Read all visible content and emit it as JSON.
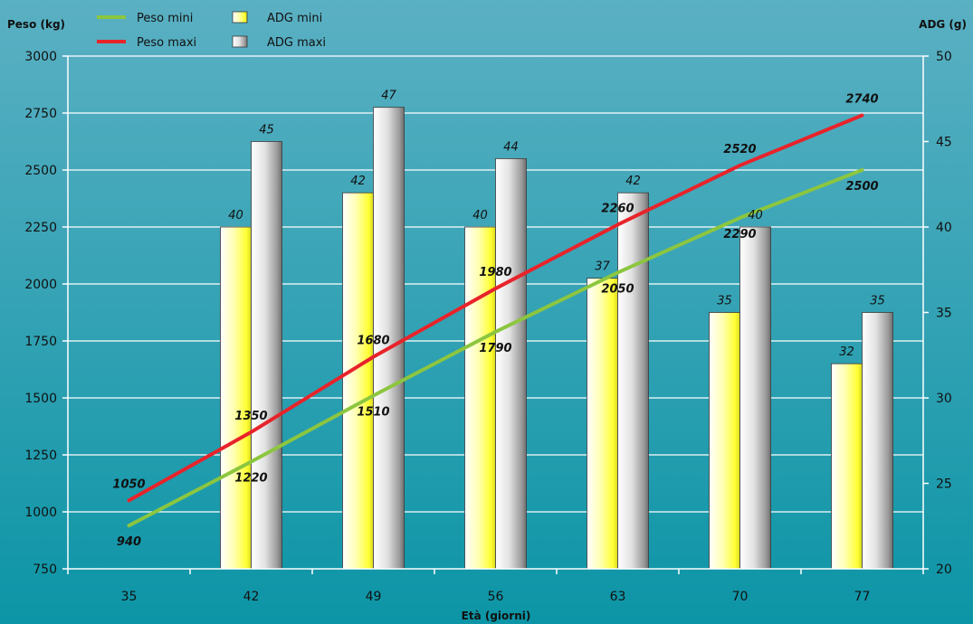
{
  "chart_data": {
    "type": "bar",
    "categories": [
      "35",
      "42",
      "49",
      "56",
      "63",
      "70",
      "77"
    ],
    "xlabel": "Età (giorni)",
    "ylabel_left": "Peso (kg)",
    "ylabel_right": "ADG (g)",
    "ylim_left": [
      750,
      3000
    ],
    "yticks_left": [
      750,
      1000,
      1250,
      1500,
      1750,
      2000,
      2250,
      2500,
      2750,
      3000
    ],
    "ylim_right": [
      20,
      50
    ],
    "yticks_right": [
      20,
      25,
      30,
      35,
      40,
      45,
      50
    ],
    "grid": true,
    "legend_position": "top-left",
    "background": [
      "#5bb0c3",
      "#0c95a6"
    ],
    "bar_series": [
      {
        "name": "ADG mini",
        "axis": "right",
        "values": [
          null,
          40,
          42,
          40,
          37,
          35,
          32
        ],
        "color": "#ffff40"
      },
      {
        "name": "ADG maxi",
        "axis": "right",
        "values": [
          null,
          45,
          47,
          44,
          42,
          40,
          35
        ],
        "color": "#bdbdbd"
      }
    ],
    "line_series": [
      {
        "name": "Peso mini",
        "axis": "left",
        "values": [
          940,
          1220,
          1510,
          1790,
          2050,
          2290,
          2500
        ],
        "color": "#8cc63f"
      },
      {
        "name": "Peso maxi",
        "axis": "left",
        "values": [
          1050,
          1350,
          1680,
          1980,
          2260,
          2520,
          2740
        ],
        "color": "#e8232a"
      }
    ]
  }
}
